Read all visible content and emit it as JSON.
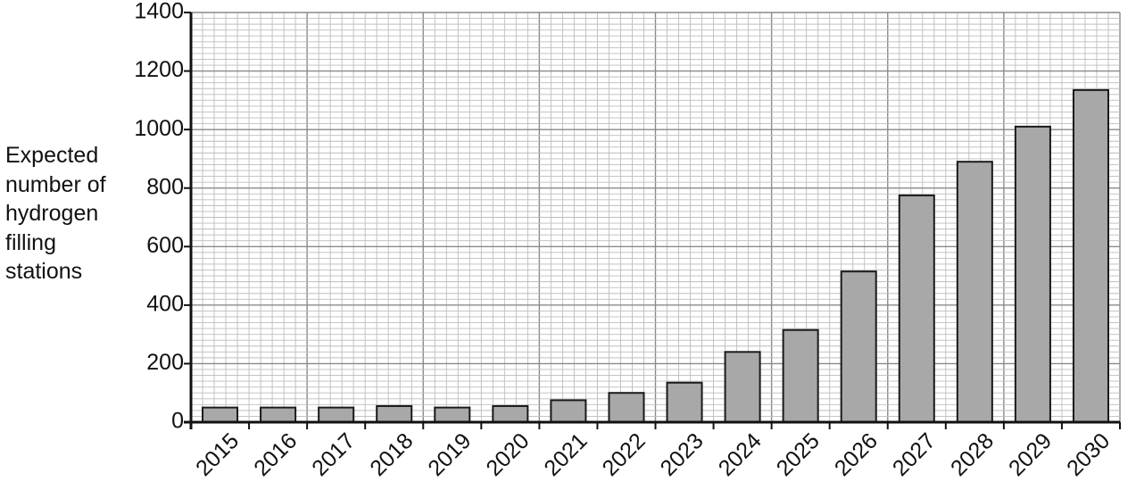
{
  "chart_data": {
    "type": "bar",
    "title": "",
    "xlabel": "",
    "ylabel_lines": [
      "Expected",
      "number of",
      "hydrogen",
      "filling",
      "stations"
    ],
    "ylim": [
      0,
      1400
    ],
    "yticks": [
      0,
      200,
      400,
      600,
      800,
      1000,
      1200,
      1400
    ],
    "categories": [
      "2015",
      "2016",
      "2017",
      "2018",
      "2019",
      "2020",
      "2021",
      "2022",
      "2023",
      "2024",
      "2025",
      "2026",
      "2027",
      "2028",
      "2029",
      "2030"
    ],
    "values": [
      50,
      50,
      50,
      55,
      50,
      55,
      75,
      100,
      135,
      240,
      315,
      515,
      775,
      890,
      1010,
      1135
    ],
    "grid": true,
    "legend": "none",
    "colors": {
      "bar_fill": "#a8a8a8",
      "bar_stroke": "#1a1a1a",
      "grid_minor": "#bdbdbd",
      "grid_major": "#8a8a8a",
      "axis": "#111111"
    }
  }
}
